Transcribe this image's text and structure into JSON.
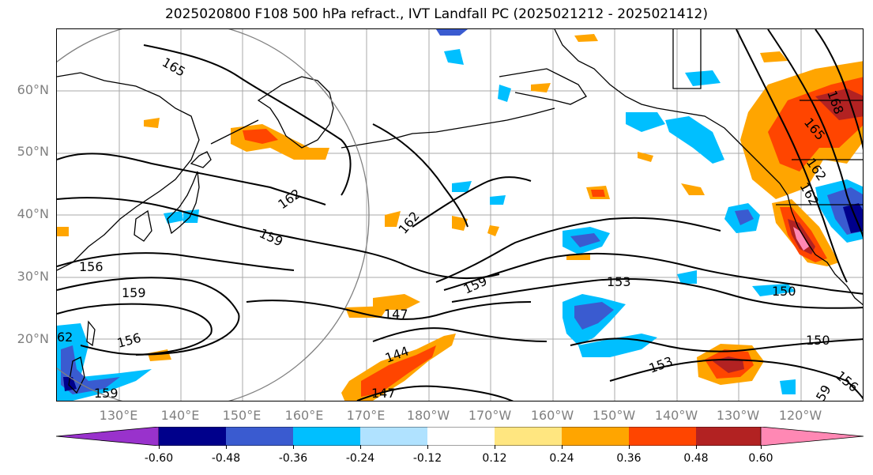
{
  "title": "2025020800 F108 500 hPa refract., IVT Landfall PC (2025021212 - 2025021412)",
  "latitude_labels": [
    "60°N",
    "50°N",
    "40°N",
    "30°N",
    "20°N"
  ],
  "longitude_labels": [
    "130°E",
    "140°E",
    "150°E",
    "160°E",
    "170°E",
    "180°W",
    "170°W",
    "160°W",
    "150°W",
    "140°W",
    "130°W",
    "120°W"
  ],
  "contour_labels": [
    "165",
    "162",
    "159",
    "156",
    "159",
    "156",
    "162",
    "159",
    "153",
    "147",
    "144",
    "147",
    "150",
    "150",
    "153",
    "156",
    "59",
    "162",
    "165",
    "168",
    "162",
    "159",
    "62"
  ],
  "colorbar": {
    "tick_labels": [
      "-0.60",
      "-0.48",
      "-0.36",
      "-0.24",
      "-0.12",
      "0.12",
      "0.24",
      "0.36",
      "0.48",
      "0.60"
    ],
    "colors": [
      "#9932cc",
      "#00008b",
      "#3a5bd0",
      "#00bfff",
      "#b0e2ff",
      "#ffffff",
      "#ffe680",
      "#ffa500",
      "#ff4500",
      "#b22222",
      "#ff88b4"
    ]
  },
  "colors": {
    "land_outline": "#000000",
    "grid": "#a9a9a9",
    "contour": "#000000",
    "circle": "#808080",
    "axis_label": "#808080"
  }
}
